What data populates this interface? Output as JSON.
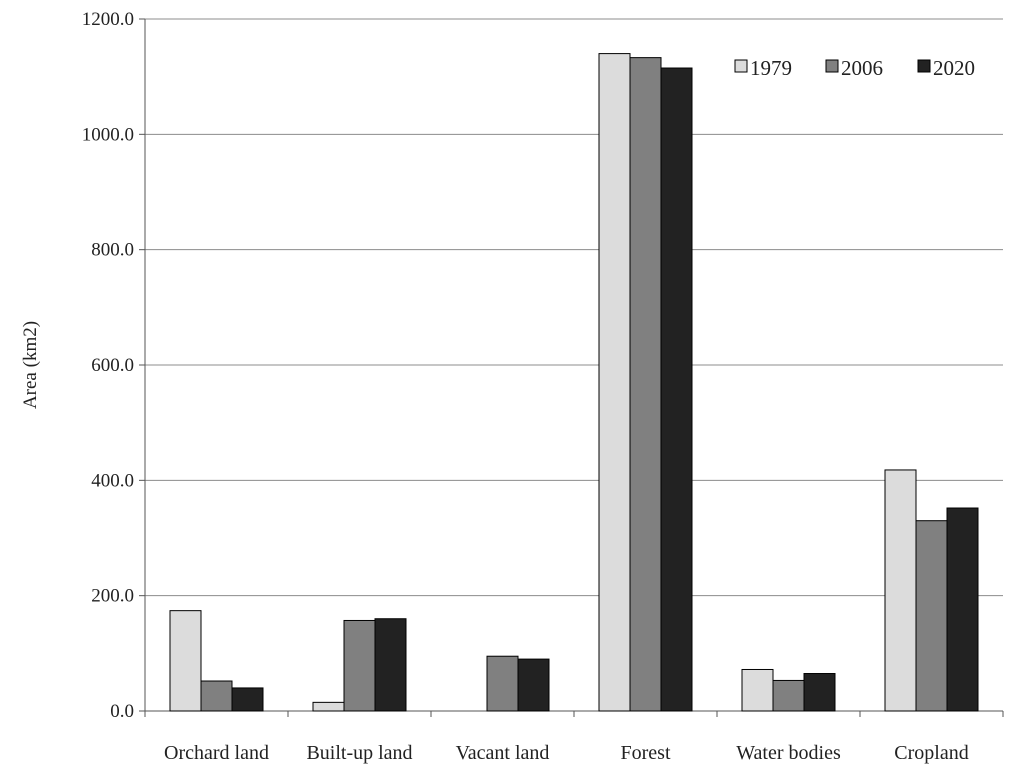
{
  "chart_data": {
    "type": "bar",
    "title": "",
    "xlabel": "",
    "ylabel": "Area (km2)",
    "ylim": [
      0,
      1200
    ],
    "yticks": [
      "0.0",
      "200.0",
      "400.0",
      "600.0",
      "800.0",
      "1000.0",
      "1200.0"
    ],
    "grid": true,
    "legend_position": "top-right",
    "categories": [
      "Orchard land",
      "Built-up land",
      "Vacant land",
      "Forest",
      "Water bodies",
      "Cropland"
    ],
    "series": [
      {
        "name": "1979",
        "color": "#dcdcdc",
        "values": [
          174,
          15,
          0,
          1140,
          72,
          418
        ]
      },
      {
        "name": "2006",
        "color": "#808080",
        "values": [
          52,
          157,
          95,
          1133,
          53,
          330
        ]
      },
      {
        "name": "2020",
        "color": "#222222",
        "values": [
          40,
          160,
          90,
          1115,
          65,
          352
        ]
      }
    ]
  }
}
